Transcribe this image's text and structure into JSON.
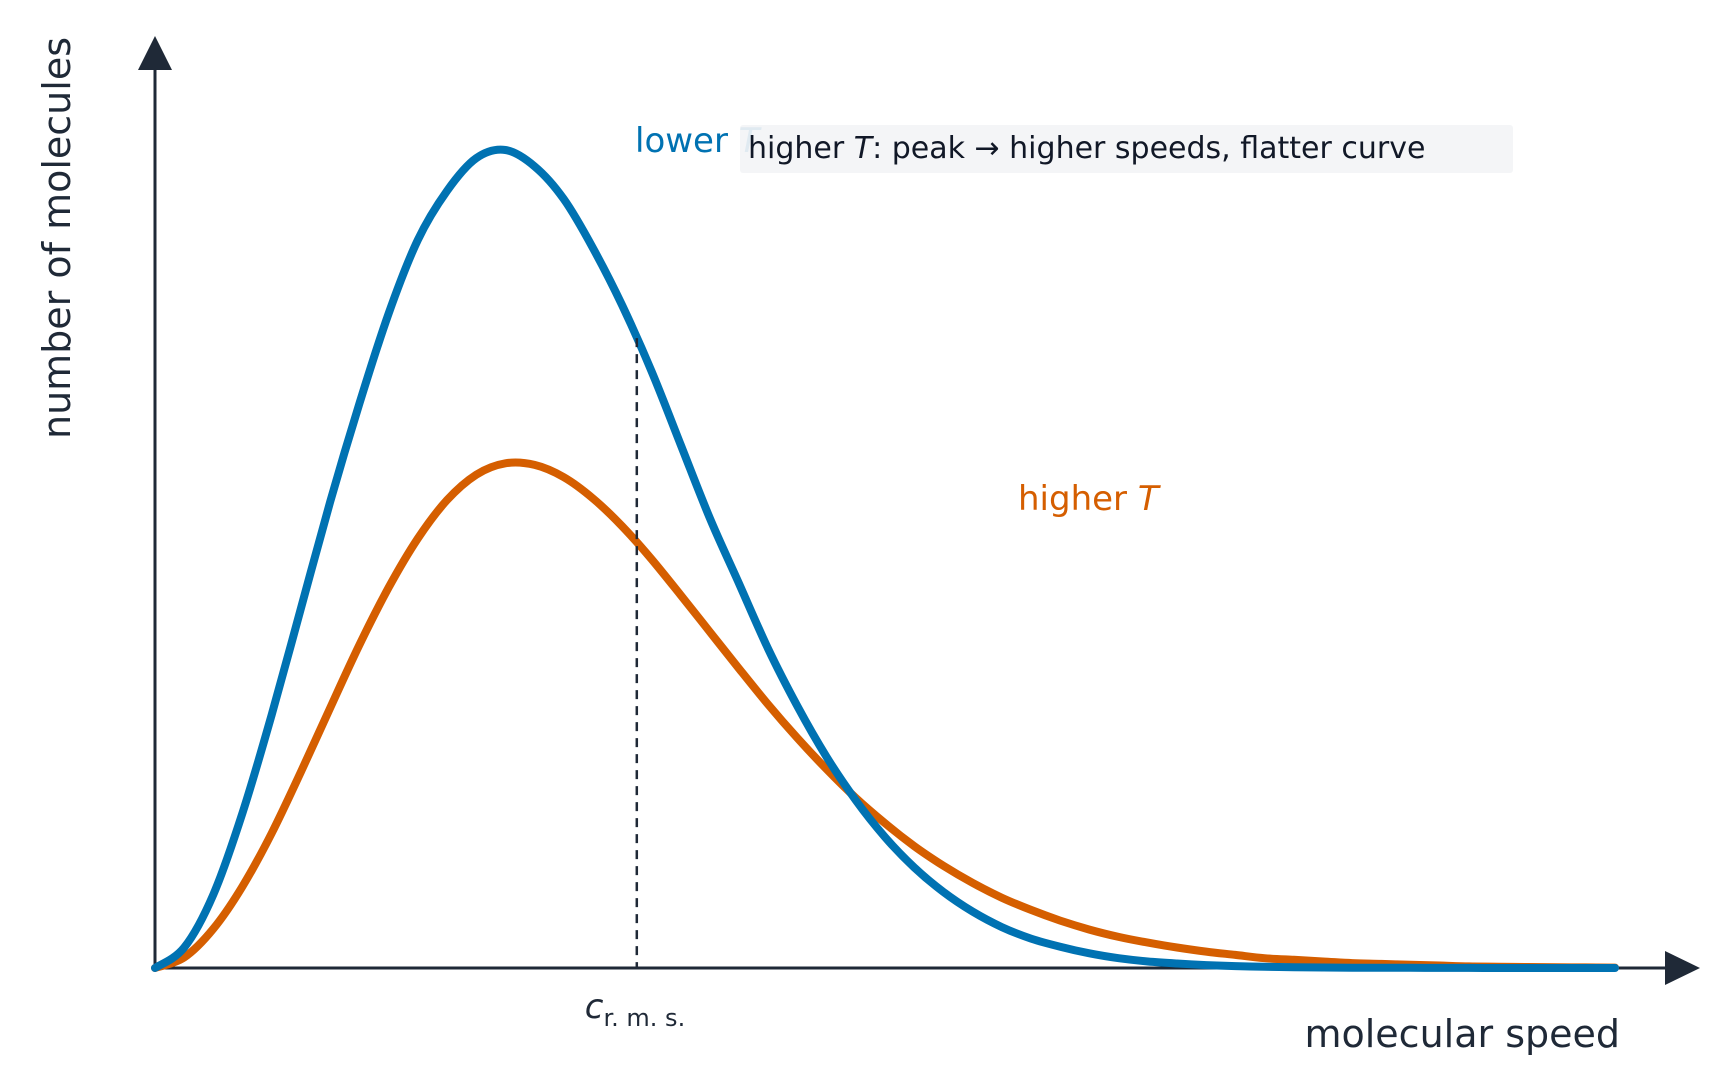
{
  "chart_data": {
    "type": "line",
    "title": "",
    "xlabel": "molecular speed",
    "ylabel": "number of molecules",
    "xlim": [
      0,
      1
    ],
    "ylim": [
      0,
      1
    ],
    "grid": false,
    "series": [
      {
        "name": "lower T",
        "label_main": "lower ",
        "label_italic": "T",
        "color": "#0072b2",
        "x": [
          0.0,
          0.02,
          0.04,
          0.06,
          0.08,
          0.1,
          0.12,
          0.14,
          0.16,
          0.18,
          0.2,
          0.22,
          0.24,
          0.26,
          0.28,
          0.3,
          0.32,
          0.34,
          0.36,
          0.38,
          0.4,
          0.42,
          0.44,
          0.46,
          0.48,
          0.5,
          0.52,
          0.54,
          0.56,
          0.58,
          0.6,
          0.62,
          0.64,
          0.66,
          0.68,
          0.7,
          0.72,
          0.74,
          0.76,
          0.78,
          0.8,
          0.82,
          0.84,
          0.86,
          0.88,
          0.9,
          0.92,
          0.94,
          0.96,
          0.98,
          1.0
        ],
        "y": [
          0.0,
          0.025,
          0.09,
          0.19,
          0.31,
          0.44,
          0.57,
          0.69,
          0.8,
          0.89,
          0.95,
          0.99,
          1.0,
          0.98,
          0.94,
          0.88,
          0.81,
          0.73,
          0.64,
          0.55,
          0.47,
          0.39,
          0.32,
          0.258,
          0.205,
          0.16,
          0.123,
          0.093,
          0.069,
          0.05,
          0.036,
          0.026,
          0.018,
          0.012,
          0.008,
          0.0055,
          0.0036,
          0.0023,
          0.0015,
          0.001,
          0.0006,
          0.0004,
          0.0003,
          0.0002,
          0.0001,
          0.0001,
          0.0,
          0.0,
          0.0,
          0.0,
          0.0
        ]
      },
      {
        "name": "higher T",
        "label_main": "higher ",
        "label_italic": "T",
        "color": "#d55e00",
        "x": [
          0.0,
          0.02,
          0.04,
          0.06,
          0.08,
          0.1,
          0.12,
          0.14,
          0.16,
          0.18,
          0.2,
          0.22,
          0.24,
          0.26,
          0.28,
          0.3,
          0.32,
          0.34,
          0.36,
          0.38,
          0.4,
          0.42,
          0.44,
          0.46,
          0.48,
          0.5,
          0.52,
          0.54,
          0.56,
          0.58,
          0.6,
          0.62,
          0.64,
          0.66,
          0.68,
          0.7,
          0.72,
          0.74,
          0.76,
          0.78,
          0.8,
          0.82,
          0.84,
          0.86,
          0.88,
          0.9,
          0.92,
          0.94,
          0.96,
          0.98,
          1.0
        ],
        "y": [
          0.0,
          0.013,
          0.048,
          0.1,
          0.165,
          0.24,
          0.318,
          0.395,
          0.465,
          0.525,
          0.572,
          0.603,
          0.617,
          0.615,
          0.6,
          0.574,
          0.54,
          0.5,
          0.456,
          0.411,
          0.366,
          0.322,
          0.281,
          0.243,
          0.208,
          0.177,
          0.149,
          0.125,
          0.104,
          0.086,
          0.071,
          0.058,
          0.047,
          0.038,
          0.031,
          0.025,
          0.02,
          0.016,
          0.012,
          0.01,
          0.008,
          0.006,
          0.005,
          0.004,
          0.003,
          0.002,
          0.0016,
          0.0012,
          0.0009,
          0.0007,
          0.0005
        ]
      }
    ],
    "reference_line": {
      "x": 0.33,
      "style": "dashed",
      "color": "#1f2937",
      "label_main": "c",
      "label_sub": "r. m. s."
    },
    "annotation": {
      "prefix": "higher ",
      "italic": "T",
      "suffix": ": peak  →  higher speeds, flatter curve"
    }
  }
}
